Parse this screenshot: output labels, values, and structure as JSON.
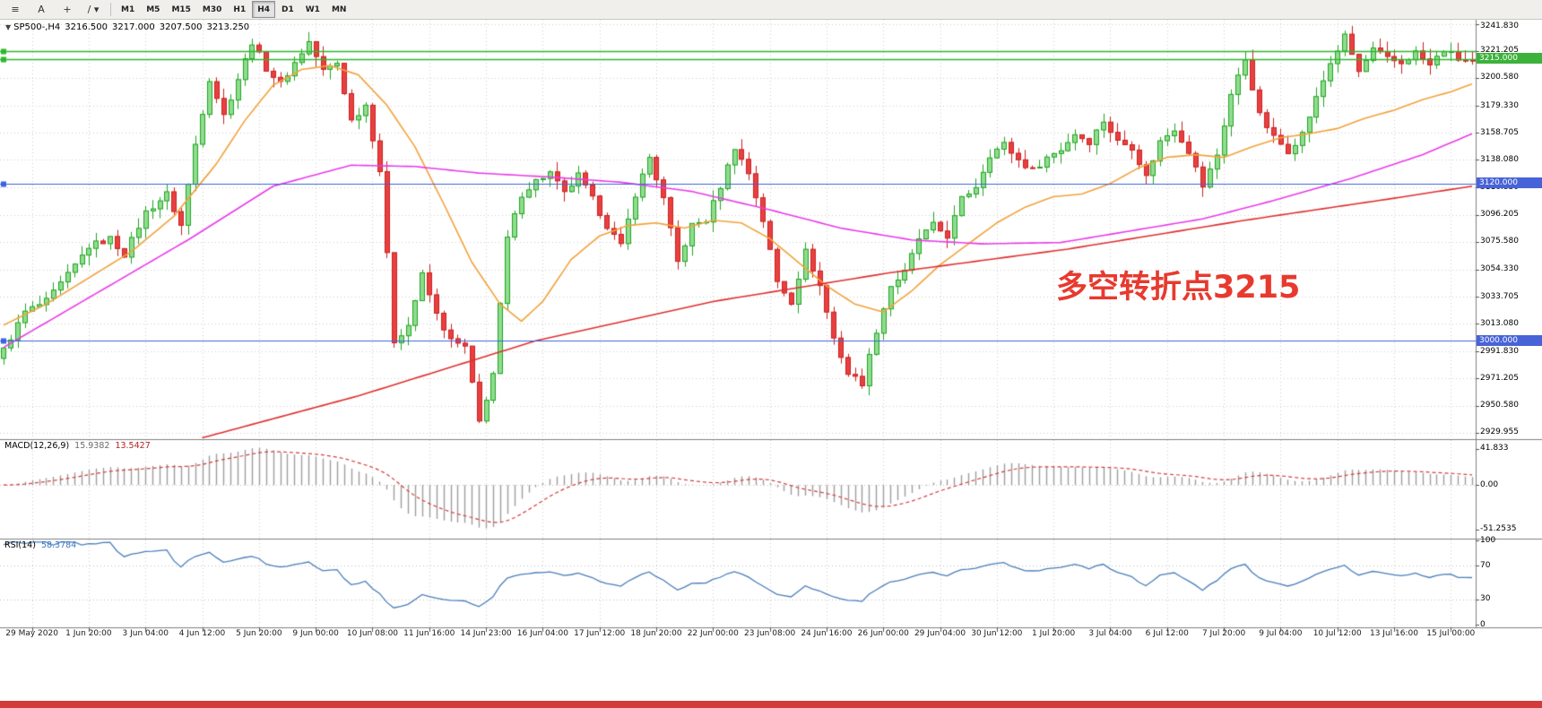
{
  "window": {
    "bottom_strip_color": "#d23b3b"
  },
  "toolbar": {
    "tools": [
      {
        "name": "chart-windows",
        "glyph": "≡"
      },
      {
        "name": "text-label",
        "glyph": "A"
      },
      {
        "name": "crosshair",
        "glyph": "+"
      },
      {
        "name": "trendline-tools",
        "glyph": "/ ▾"
      }
    ],
    "timeframes": [
      "M1",
      "M5",
      "M15",
      "M30",
      "H1",
      "H4",
      "D1",
      "W1",
      "MN"
    ],
    "active_timeframe": "H4"
  },
  "header": {
    "collapse_icon": "▼",
    "symbol": "SP500-,H4",
    "open": "3216.500",
    "high": "3217.000",
    "low": "3207.500",
    "close": "3213.250"
  },
  "annotation": {
    "text": "多空转折点3215",
    "color": "#e8392e"
  },
  "price_scale": {
    "labels": [
      "3241.830",
      "3221.205",
      "3200.580",
      "3179.330",
      "3158.705",
      "3138.080",
      "3116.830",
      "3096.205",
      "3075.580",
      "3054.330",
      "3033.705",
      "3013.080",
      "2991.830",
      "2971.205",
      "2950.580",
      "2929.955"
    ],
    "tags": [
      {
        "text": "3215.000",
        "price": 3215.0,
        "bg": "#3cb23c",
        "fg": "#ffffff"
      },
      {
        "text": "3120.000",
        "price": 3120.0,
        "bg": "#4863d8",
        "fg": "#ffffff"
      },
      {
        "text": "3000.000",
        "price": 3000.0,
        "bg": "#4863d8",
        "fg": "#ffffff"
      }
    ]
  },
  "macd_panel": {
    "title": "MACD(12,26,9)",
    "main_value": "15.9382",
    "signal_value": "13.5427",
    "scale_labels": [
      {
        "text": "41.833",
        "value": 41.833
      },
      {
        "text": "0.00",
        "value": 0
      },
      {
        "text": "-51.2535",
        "value": -51.2535
      }
    ]
  },
  "rsi_panel": {
    "title": "RSI(14)",
    "value": "58.3784",
    "scale_labels": [
      {
        "text": "100",
        "value": 100
      },
      {
        "text": "70",
        "value": 70
      },
      {
        "text": "30",
        "value": 30
      },
      {
        "text": "0",
        "value": 0
      }
    ],
    "levels": [
      70,
      30
    ]
  },
  "time_axis": {
    "labels": [
      "29 May 2020",
      "1 Jun 20:00",
      "3 Jun 04:00",
      "4 Jun 12:00",
      "5 Jun 20:00",
      "9 Jun 00:00",
      "10 Jun 08:00",
      "11 Jun 16:00",
      "14 Jun 23:00",
      "16 Jun 04:00",
      "17 Jun 12:00",
      "18 Jun 20:00",
      "22 Jun 00:00",
      "23 Jun 08:00",
      "24 Jun 16:00",
      "26 Jun 00:00",
      "29 Jun 04:00",
      "30 Jun 12:00",
      "1 Jul 20:00",
      "3 Jul 04:00",
      "6 Jul 12:00",
      "7 Jul 20:00",
      "9 Jul 04:00",
      "10 Jul 12:00",
      "13 Jul 16:00",
      "15 Jul 00:00"
    ]
  },
  "chart_data": {
    "type": "candlestick",
    "symbol": "SP500-",
    "timeframe": "H4",
    "title": "SP500-,H4 3216.500 3217.000 3207.500 3213.250",
    "bar_count": 208,
    "ylim": [
      2925,
      3245
    ],
    "grid_start_bar": 4,
    "grid_step_bars": 8,
    "up_color": "#1fa51f",
    "up_fill": "#8fdc8f",
    "down_color": "#cc1f1f",
    "down_fill": "#e84040",
    "close_anchors": [
      [
        0,
        2993
      ],
      [
        3,
        3022
      ],
      [
        6,
        3030
      ],
      [
        9,
        3050
      ],
      [
        12,
        3072
      ],
      [
        15,
        3078
      ],
      [
        17,
        3066
      ],
      [
        20,
        3098
      ],
      [
        23,
        3112
      ],
      [
        25,
        3088
      ],
      [
        27,
        3150
      ],
      [
        29,
        3200
      ],
      [
        31,
        3172
      ],
      [
        33,
        3200
      ],
      [
        35,
        3228
      ],
      [
        37,
        3208
      ],
      [
        39,
        3196
      ],
      [
        41,
        3212
      ],
      [
        43,
        3228
      ],
      [
        45,
        3206
      ],
      [
        47,
        3212
      ],
      [
        49,
        3168
      ],
      [
        51,
        3180
      ],
      [
        53,
        3130
      ],
      [
        55,
        3000
      ],
      [
        57,
        3012
      ],
      [
        59,
        3050
      ],
      [
        61,
        3020
      ],
      [
        63,
        3000
      ],
      [
        65,
        2995
      ],
      [
        67,
        2938
      ],
      [
        69,
        2975
      ],
      [
        71,
        3078
      ],
      [
        73,
        3112
      ],
      [
        75,
        3122
      ],
      [
        77,
        3128
      ],
      [
        79,
        3112
      ],
      [
        81,
        3126
      ],
      [
        83,
        3108
      ],
      [
        85,
        3088
      ],
      [
        87,
        3072
      ],
      [
        89,
        3112
      ],
      [
        91,
        3140
      ],
      [
        93,
        3108
      ],
      [
        95,
        3060
      ],
      [
        97,
        3088
      ],
      [
        99,
        3092
      ],
      [
        101,
        3118
      ],
      [
        103,
        3148
      ],
      [
        105,
        3128
      ],
      [
        107,
        3092
      ],
      [
        109,
        3045
      ],
      [
        111,
        3030
      ],
      [
        113,
        3068
      ],
      [
        115,
        3042
      ],
      [
        117,
        3002
      ],
      [
        119,
        2975
      ],
      [
        121,
        2968
      ],
      [
        123,
        3008
      ],
      [
        125,
        3042
      ],
      [
        127,
        3052
      ],
      [
        129,
        3078
      ],
      [
        131,
        3088
      ],
      [
        133,
        3080
      ],
      [
        135,
        3108
      ],
      [
        137,
        3118
      ],
      [
        139,
        3142
      ],
      [
        141,
        3150
      ],
      [
        143,
        3138
      ],
      [
        145,
        3130
      ],
      [
        147,
        3140
      ],
      [
        149,
        3146
      ],
      [
        151,
        3158
      ],
      [
        153,
        3152
      ],
      [
        155,
        3168
      ],
      [
        157,
        3152
      ],
      [
        159,
        3148
      ],
      [
        161,
        3125
      ],
      [
        163,
        3152
      ],
      [
        165,
        3162
      ],
      [
        167,
        3145
      ],
      [
        169,
        3118
      ],
      [
        171,
        3142
      ],
      [
        173,
        3188
      ],
      [
        175,
        3215
      ],
      [
        177,
        3172
      ],
      [
        179,
        3155
      ],
      [
        181,
        3145
      ],
      [
        183,
        3158
      ],
      [
        185,
        3185
      ],
      [
        187,
        3212
      ],
      [
        189,
        3232
      ],
      [
        191,
        3205
      ],
      [
        193,
        3222
      ],
      [
        195,
        3215
      ],
      [
        197,
        3212
      ],
      [
        199,
        3220
      ],
      [
        201,
        3210
      ],
      [
        203,
        3222
      ],
      [
        205,
        3215
      ],
      [
        207,
        3213
      ]
    ],
    "hlines": [
      {
        "price": 3221.2,
        "color": "#2db82d",
        "width": 1.4,
        "handles": true
      },
      {
        "price": 3215.0,
        "color": "#2db82d",
        "width": 1.4,
        "handles": true
      },
      {
        "price": 3120.0,
        "color": "#3c64e0",
        "width": 1.2,
        "handles": true
      },
      {
        "price": 3000.0,
        "color": "#3c64e0",
        "width": 1.2,
        "handles": true
      }
    ],
    "moving_averages": [
      {
        "name": "ma-fast-orange",
        "color": "#f2a33c",
        "anchors": [
          [
            0,
            3012
          ],
          [
            6,
            3028
          ],
          [
            12,
            3048
          ],
          [
            18,
            3068
          ],
          [
            24,
            3095
          ],
          [
            30,
            3135
          ],
          [
            34,
            3168
          ],
          [
            38,
            3195
          ],
          [
            42,
            3207
          ],
          [
            46,
            3210
          ],
          [
            50,
            3203
          ],
          [
            54,
            3180
          ],
          [
            58,
            3148
          ],
          [
            62,
            3105
          ],
          [
            66,
            3060
          ],
          [
            70,
            3028
          ],
          [
            73,
            3015
          ],
          [
            76,
            3030
          ],
          [
            80,
            3062
          ],
          [
            84,
            3080
          ],
          [
            88,
            3088
          ],
          [
            92,
            3090
          ],
          [
            96,
            3086
          ],
          [
            100,
            3092
          ],
          [
            104,
            3090
          ],
          [
            108,
            3078
          ],
          [
            112,
            3060
          ],
          [
            116,
            3042
          ],
          [
            120,
            3028
          ],
          [
            124,
            3022
          ],
          [
            128,
            3038
          ],
          [
            132,
            3058
          ],
          [
            136,
            3074
          ],
          [
            140,
            3090
          ],
          [
            144,
            3102
          ],
          [
            148,
            3110
          ],
          [
            152,
            3112
          ],
          [
            156,
            3120
          ],
          [
            160,
            3132
          ],
          [
            164,
            3140
          ],
          [
            168,
            3142
          ],
          [
            172,
            3140
          ],
          [
            176,
            3148
          ],
          [
            180,
            3155
          ],
          [
            184,
            3158
          ],
          [
            188,
            3162
          ],
          [
            192,
            3170
          ],
          [
            196,
            3176
          ],
          [
            200,
            3184
          ],
          [
            204,
            3190
          ],
          [
            207,
            3196
          ]
        ]
      },
      {
        "name": "ma-mid-magenta",
        "color": "#e93ce9",
        "anchors": [
          [
            0,
            2995
          ],
          [
            13,
            3036
          ],
          [
            26,
            3077
          ],
          [
            38,
            3118
          ],
          [
            49,
            3134
          ],
          [
            58,
            3133
          ],
          [
            67,
            3128
          ],
          [
            77,
            3125
          ],
          [
            87,
            3121
          ],
          [
            97,
            3114
          ],
          [
            108,
            3100
          ],
          [
            118,
            3086
          ],
          [
            128,
            3077
          ],
          [
            138,
            3074
          ],
          [
            149,
            3075
          ],
          [
            159,
            3084
          ],
          [
            169,
            3093
          ],
          [
            179,
            3107
          ],
          [
            190,
            3124
          ],
          [
            200,
            3142
          ],
          [
            207,
            3158
          ]
        ]
      },
      {
        "name": "ma-slow-red",
        "color": "#e03030",
        "anchors": [
          [
            28,
            2926
          ],
          [
            50,
            2958
          ],
          [
            75,
            3000
          ],
          [
            100,
            3030
          ],
          [
            125,
            3052
          ],
          [
            150,
            3070
          ],
          [
            175,
            3092
          ],
          [
            195,
            3108
          ],
          [
            207,
            3118
          ]
        ]
      }
    ],
    "macd": {
      "fast": 12,
      "slow": 26,
      "signal": 9,
      "hist_color": "#9e9e9e",
      "signal_color": "#d43c3c",
      "ylim": [
        -62,
        52
      ]
    },
    "rsi": {
      "period": 14,
      "color": "#4a7ebb",
      "levels": [
        70,
        30
      ]
    }
  }
}
